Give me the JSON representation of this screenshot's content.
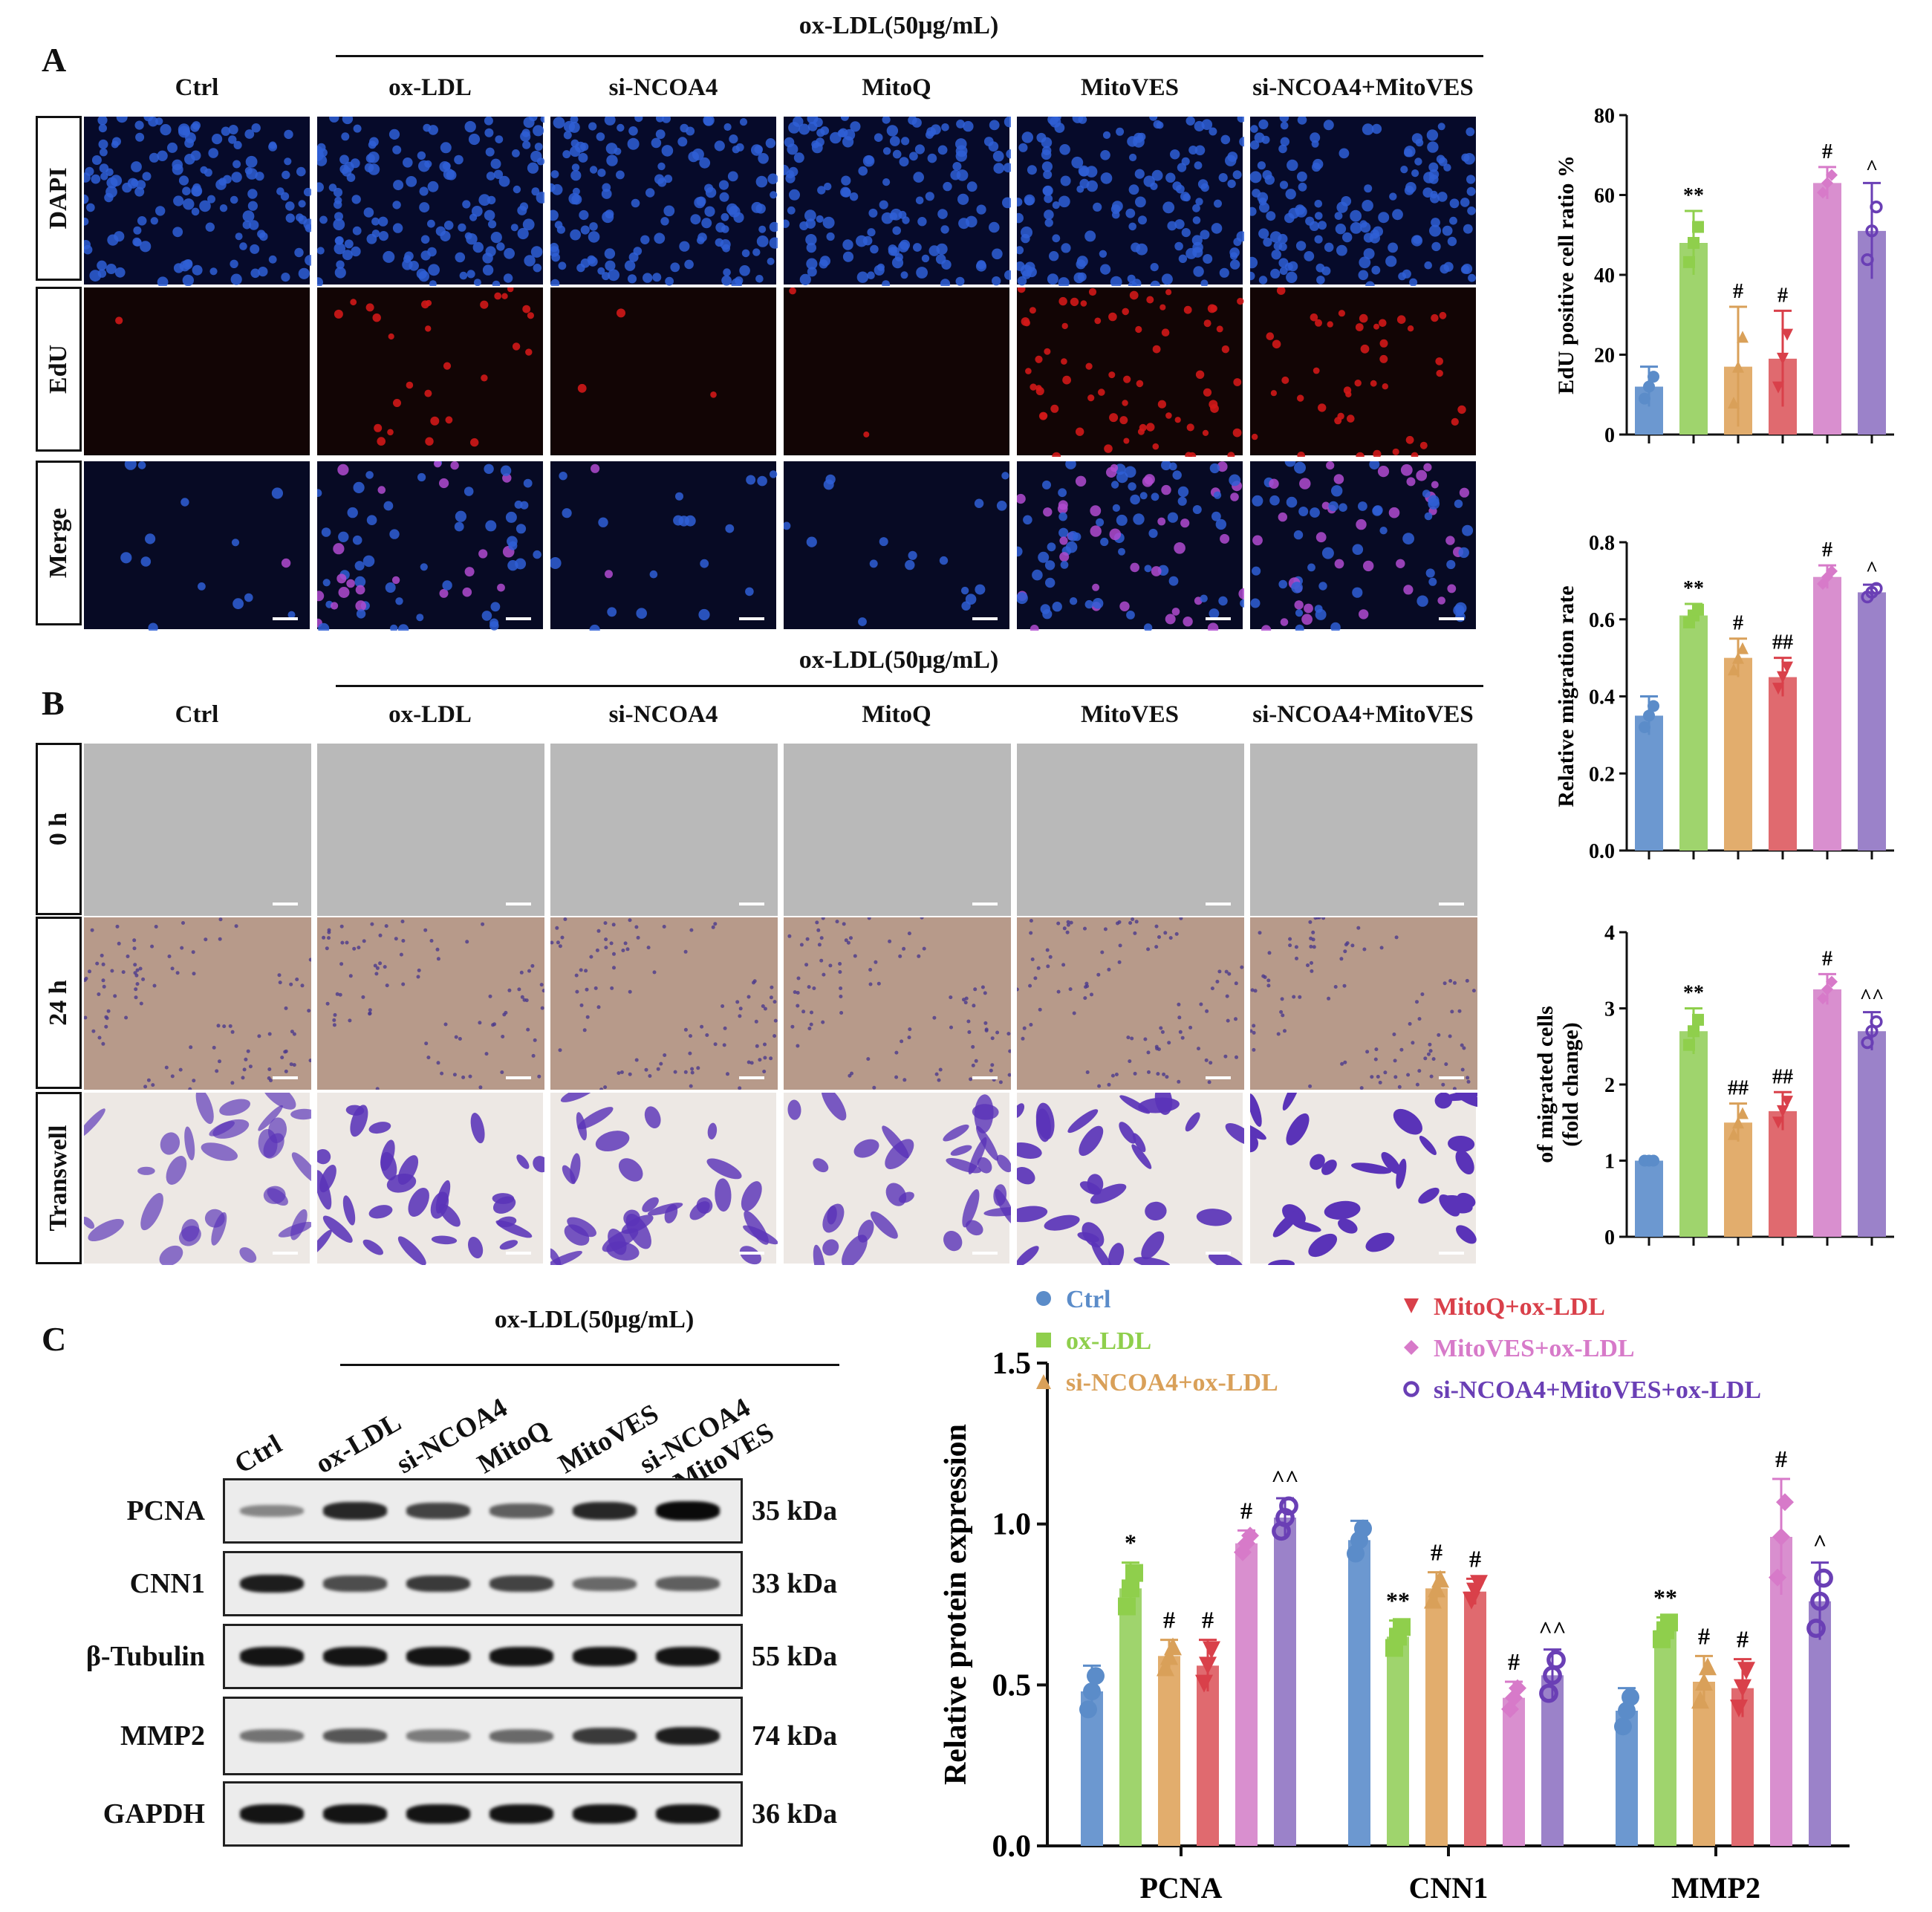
{
  "panel_letters": {
    "a": "A",
    "b": "B",
    "c": "C"
  },
  "treatment_header": "ox-LDL(50μg/mL)",
  "columns": [
    "Ctrl",
    "ox-LDL",
    "si-NCOA4",
    "MitoQ",
    "MitoVES",
    "si-NCOA4+MitoVES"
  ],
  "panel_a_rows": [
    "DAPI",
    "EdU",
    "Merge"
  ],
  "panel_b_rows": [
    "0 h",
    "24 h",
    "Transwell"
  ],
  "colors": {
    "ctrl": "#6c98d0",
    "oxldl": "#9fd46d",
    "sincoa4": "#e2ad6d",
    "mitoq": "#e06a6f",
    "mitoves": "#d98fcf",
    "combo": "#9b82c9",
    "ctrl_pt": "#5b8cc9",
    "oxldl_pt": "#8fcf4c",
    "sincoa4_pt": "#d9a059",
    "mitoq_pt": "#d9404a",
    "mitoves_pt": "#d77ac9",
    "combo_pt": "#6a3fb5"
  },
  "blot": {
    "lanes": [
      "Ctrl",
      "ox-LDL",
      "si-NCOA4",
      "MitoQ",
      "MitoVES",
      "si-NCOA4\n+ MitoVES"
    ],
    "rows": [
      {
        "label": "PCNA",
        "kda": "35  kDa",
        "intensity": [
          0.35,
          0.85,
          0.7,
          0.55,
          0.85,
          1.0
        ]
      },
      {
        "label": "CNN1",
        "kda": "33  kDa",
        "intensity": [
          0.9,
          0.65,
          0.75,
          0.7,
          0.5,
          0.55
        ]
      },
      {
        "label": "β-Tubulin",
        "kda": "55  kDa",
        "intensity": [
          0.95,
          0.95,
          0.95,
          0.95,
          0.95,
          0.95
        ]
      },
      {
        "label": "MMP2",
        "kda": "74  kDa",
        "intensity": [
          0.45,
          0.6,
          0.4,
          0.5,
          0.75,
          0.9
        ]
      },
      {
        "label": "GAPDH",
        "kda": "36  kDa",
        "intensity": [
          0.95,
          0.95,
          0.95,
          0.95,
          0.95,
          0.95
        ]
      }
    ]
  },
  "chart_data": [
    {
      "type": "bar",
      "ylabel": "EdU positive cell ratio %",
      "ylim": [
        0,
        80
      ],
      "yticks": [
        0,
        20,
        40,
        60,
        80
      ],
      "values": [
        12,
        48,
        17,
        19,
        63,
        51
      ],
      "errors": [
        5,
        8,
        15,
        12,
        4,
        12
      ],
      "sig": [
        "",
        "**",
        "#",
        "#",
        "#",
        "^"
      ]
    },
    {
      "type": "bar",
      "ylabel": "Relative migration rate",
      "ylim": [
        0,
        0.8
      ],
      "yticks": [
        "0.0",
        "0.2",
        "0.4",
        "0.6",
        "0.8"
      ],
      "values": [
        0.35,
        0.61,
        0.5,
        0.45,
        0.71,
        0.67
      ],
      "errors": [
        0.05,
        0.03,
        0.05,
        0.05,
        0.03,
        0.02
      ],
      "sig": [
        "",
        "**",
        "#",
        "##",
        "#",
        "^"
      ]
    },
    {
      "type": "bar",
      "ylabel_line1": "of migrated cells",
      "ylabel_line2": "(fold change)",
      "ylim": [
        0,
        4
      ],
      "yticks": [
        0,
        1,
        2,
        3,
        4
      ],
      "values": [
        1.0,
        2.7,
        1.5,
        1.65,
        3.25,
        2.7
      ],
      "errors": [
        0.0,
        0.3,
        0.25,
        0.25,
        0.2,
        0.25
      ],
      "sig": [
        "",
        "**",
        "##",
        "##",
        "#",
        "^^"
      ]
    },
    {
      "type": "bar",
      "ylabel": "Relative protein expression",
      "ylim": [
        0,
        1.5
      ],
      "yticks": [
        "0.0",
        "0.5",
        "1.0",
        "1.5"
      ],
      "categories": [
        "PCNA",
        "CNN1",
        "MMP2"
      ],
      "series": [
        {
          "name": "Ctrl",
          "values": [
            0.48,
            0.95,
            0.42
          ],
          "errors": [
            0.08,
            0.06,
            0.07
          ],
          "sig": [
            "",
            "",
            ""
          ]
        },
        {
          "name": "ox-LDL",
          "values": [
            0.8,
            0.65,
            0.67
          ],
          "errors": [
            0.08,
            0.05,
            0.04
          ],
          "sig": [
            "*",
            "**",
            "**"
          ]
        },
        {
          "name": "si-NCOA4+ox-LDL",
          "values": [
            0.59,
            0.8,
            0.51
          ],
          "errors": [
            0.05,
            0.05,
            0.08
          ],
          "sig": [
            "#",
            "#",
            "#"
          ]
        },
        {
          "name": "MitoQ+ox-LDL",
          "values": [
            0.56,
            0.79,
            0.49
          ],
          "errors": [
            0.08,
            0.04,
            0.09
          ],
          "sig": [
            "#",
            "#",
            "#"
          ]
        },
        {
          "name": "MitoVES+ox-LDL",
          "values": [
            0.94,
            0.46,
            0.96
          ],
          "errors": [
            0.04,
            0.05,
            0.18
          ],
          "sig": [
            "#",
            "#",
            "#"
          ]
        },
        {
          "name": "si-NCOA4+MitoVES+ox-LDL",
          "values": [
            1.02,
            0.53,
            0.76
          ],
          "errors": [
            0.06,
            0.08,
            0.12
          ],
          "sig": [
            "^^",
            "^^",
            "^"
          ]
        }
      ]
    }
  ]
}
